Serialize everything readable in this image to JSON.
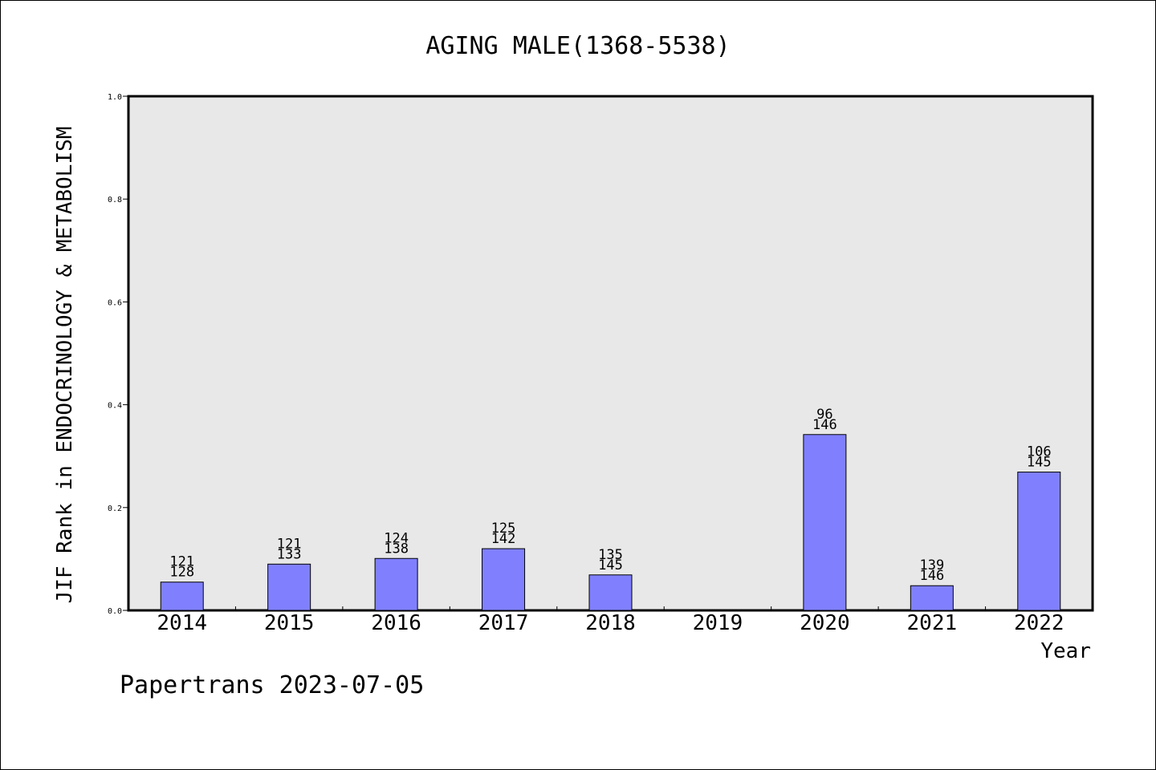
{
  "chart_data": {
    "type": "bar",
    "title": "AGING MALE(1368-5538)",
    "xlabel": "Year",
    "ylabel": "JIF Rank in ENDOCRINOLOGY & METABOLISM",
    "ylim": [
      0,
      1.0
    ],
    "yticks": [
      "0.0",
      "0.2",
      "0.4",
      "0.6",
      "0.8",
      "1.0"
    ],
    "categories": [
      "2014",
      "2015",
      "2016",
      "2017",
      "2018",
      "2019",
      "2020",
      "2021",
      "2022"
    ],
    "values": [
      0.055,
      0.09,
      0.101,
      0.12,
      0.069,
      null,
      0.342,
      0.048,
      0.269
    ],
    "rank_labels": [
      [
        "121",
        "128"
      ],
      [
        "121",
        "133"
      ],
      [
        "124",
        "138"
      ],
      [
        "125",
        "142"
      ],
      [
        "135",
        "145"
      ],
      null,
      [
        "96",
        "146"
      ],
      [
        "139",
        "146"
      ],
      [
        "106",
        "145"
      ]
    ],
    "bar_color": "#8080ff",
    "plot_background": "#e8e8e8",
    "grid": false
  },
  "footer": {
    "credit": "Papertrans 2023-07-05"
  }
}
